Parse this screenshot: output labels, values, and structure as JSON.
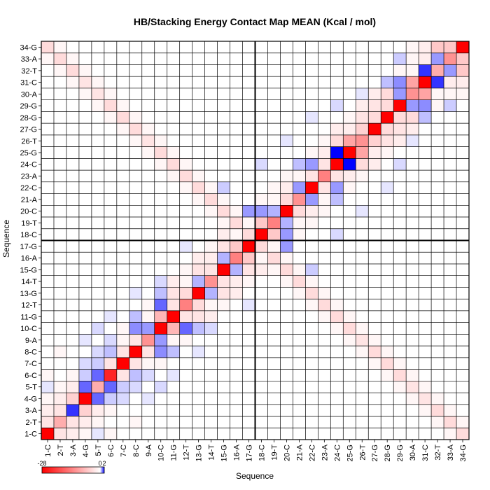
{
  "chart_data": {
    "type": "heatmap",
    "title": "HB/Stacking Energy Contact Map MEAN (Kcal / mol)",
    "xlabel": "Sequence",
    "ylabel": "Sequence",
    "x_labels": [
      "1-C",
      "2-T",
      "3-A",
      "4-G",
      "5-T",
      "6-C",
      "7-C",
      "8-C",
      "9-A",
      "10-C",
      "11-G",
      "12-T",
      "13-G",
      "14-T",
      "15-G",
      "16-A",
      "17-G",
      "18-C",
      "19-T",
      "20-C",
      "21-A",
      "22-C",
      "23-A",
      "24-C",
      "25-G",
      "26-T",
      "27-G",
      "28-G",
      "29-G",
      "30-A",
      "31-C",
      "32-T",
      "33-A",
      "34-G"
    ],
    "y_labels": [
      "1-C",
      "2-T",
      "3-A",
      "4-G",
      "5-T",
      "6-C",
      "7-C",
      "8-C",
      "9-A",
      "10-C",
      "11-G",
      "12-T",
      "13-G",
      "14-T",
      "15-G",
      "16-A",
      "17-G",
      "18-C",
      "19-T",
      "20-C",
      "21-A",
      "22-C",
      "23-A",
      "24-C",
      "25-G",
      "26-T",
      "27-G",
      "28-G",
      "29-G",
      "30-A",
      "31-C",
      "32-T",
      "33-A",
      "34-G"
    ],
    "strand_split_after": 17,
    "colorbar": {
      "min": -28,
      "max": 2,
      "tick_labels": [
        "-28",
        "0",
        "2"
      ],
      "tick_values": [
        -28,
        0,
        2
      ]
    },
    "colors": {
      "strong_negative": "#ff0000",
      "zero": "#ffffff",
      "positive": "#0000ff"
    },
    "cells": [
      [
        1,
        1,
        -28
      ],
      [
        2,
        2,
        -9
      ],
      [
        3,
        3,
        1.6
      ],
      [
        4,
        4,
        -28
      ],
      [
        5,
        5,
        -9
      ],
      [
        6,
        6,
        -24
      ],
      [
        7,
        7,
        -28
      ],
      [
        8,
        8,
        -28
      ],
      [
        9,
        9,
        -12
      ],
      [
        10,
        10,
        -28
      ],
      [
        11,
        11,
        -28
      ],
      [
        12,
        12,
        -14
      ],
      [
        13,
        13,
        -28
      ],
      [
        14,
        14,
        -12
      ],
      [
        15,
        15,
        -28
      ],
      [
        16,
        16,
        -14
      ],
      [
        17,
        17,
        -28
      ],
      [
        18,
        18,
        -28
      ],
      [
        19,
        19,
        -14
      ],
      [
        20,
        20,
        -28
      ],
      [
        21,
        21,
        -12
      ],
      [
        22,
        22,
        -28
      ],
      [
        23,
        23,
        -14
      ],
      [
        24,
        24,
        -28
      ],
      [
        25,
        25,
        -28
      ],
      [
        26,
        26,
        -12
      ],
      [
        27,
        27,
        -28
      ],
      [
        28,
        28,
        -28
      ],
      [
        29,
        29,
        -28
      ],
      [
        30,
        30,
        -12
      ],
      [
        31,
        31,
        -28
      ],
      [
        32,
        32,
        -9
      ],
      [
        33,
        33,
        -12
      ],
      [
        34,
        34,
        -28
      ],
      [
        1,
        2,
        -3
      ],
      [
        2,
        3,
        -3
      ],
      [
        3,
        4,
        -5
      ],
      [
        4,
        5,
        1.2
      ],
      [
        5,
        6,
        1.2
      ],
      [
        6,
        7,
        -3
      ],
      [
        7,
        8,
        -3
      ],
      [
        8,
        9,
        -3
      ],
      [
        9,
        10,
        0.8
      ],
      [
        10,
        11,
        -8
      ],
      [
        11,
        12,
        -3
      ],
      [
        12,
        13,
        -4
      ],
      [
        13,
        14,
        0.6
      ],
      [
        14,
        15,
        -3
      ],
      [
        15,
        16,
        0.6
      ],
      [
        16,
        17,
        -6
      ],
      [
        17,
        18,
        -6
      ],
      [
        18,
        19,
        -6
      ],
      [
        19,
        20,
        0.6
      ],
      [
        20,
        21,
        -4
      ],
      [
        21,
        22,
        0.8
      ],
      [
        22,
        23,
        -3
      ],
      [
        23,
        24,
        -3
      ],
      [
        24,
        25,
        2
      ],
      [
        25,
        26,
        -10
      ],
      [
        26,
        27,
        -5
      ],
      [
        27,
        28,
        -4
      ],
      [
        28,
        29,
        -4
      ],
      [
        29,
        30,
        0.8
      ],
      [
        30,
        31,
        -10
      ],
      [
        31,
        32,
        1.6
      ],
      [
        32,
        33,
        0.8
      ],
      [
        33,
        34,
        -6
      ],
      [
        1,
        3,
        -2
      ],
      [
        2,
        4,
        -2
      ],
      [
        3,
        5,
        -2
      ],
      [
        4,
        6,
        0.4
      ],
      [
        5,
        7,
        0.4
      ],
      [
        6,
        8,
        0.5
      ],
      [
        7,
        9,
        -1
      ],
      [
        8,
        10,
        0.9
      ],
      [
        9,
        11,
        -1
      ],
      [
        10,
        12,
        1.2
      ],
      [
        11,
        13,
        -3
      ],
      [
        12,
        14,
        -1
      ],
      [
        13,
        15,
        -3
      ],
      [
        14,
        16,
        -2
      ],
      [
        15,
        17,
        -3
      ],
      [
        16,
        18,
        -5
      ],
      [
        17,
        19,
        -1
      ],
      [
        18,
        20,
        0.8
      ],
      [
        19,
        21,
        -1
      ],
      [
        20,
        22,
        -2
      ],
      [
        21,
        23,
        -1
      ],
      [
        22,
        24,
        0.8
      ],
      [
        23,
        25,
        -2
      ],
      [
        24,
        26,
        -4
      ],
      [
        25,
        27,
        -2
      ],
      [
        26,
        28,
        -3
      ],
      [
        27,
        29,
        -3
      ],
      [
        28,
        30,
        -4
      ],
      [
        29,
        31,
        0.9
      ],
      [
        30,
        32,
        -1
      ],
      [
        31,
        33,
        -2
      ],
      [
        32,
        34,
        -6
      ],
      [
        1,
        4,
        -1
      ],
      [
        2,
        5,
        -1
      ],
      [
        3,
        6,
        -1
      ],
      [
        4,
        7,
        0.3
      ],
      [
        5,
        8,
        0.3
      ],
      [
        6,
        9,
        0.3
      ],
      [
        7,
        10,
        -1
      ],
      [
        8,
        11,
        0.5
      ],
      [
        9,
        12,
        -1
      ],
      [
        10,
        13,
        0.5
      ],
      [
        11,
        14,
        -2
      ],
      [
        12,
        15,
        -1
      ],
      [
        13,
        16,
        -2
      ],
      [
        14,
        17,
        -1
      ],
      [
        15,
        18,
        -2
      ],
      [
        16,
        19,
        -1
      ],
      [
        17,
        20,
        0.8
      ],
      [
        18,
        21,
        -1
      ],
      [
        19,
        22,
        -1
      ],
      [
        20,
        23,
        -1
      ],
      [
        21,
        24,
        0.5
      ],
      [
        22,
        25,
        -1
      ],
      [
        23,
        26,
        -1
      ],
      [
        24,
        27,
        -2
      ],
      [
        25,
        28,
        -1
      ],
      [
        26,
        29,
        -2
      ],
      [
        27,
        30,
        -2
      ],
      [
        28,
        31,
        -1
      ],
      [
        29,
        32,
        -1
      ],
      [
        30,
        33,
        -1
      ],
      [
        31,
        34,
        -2
      ],
      [
        1,
        34,
        -4
      ],
      [
        2,
        33,
        -4
      ],
      [
        3,
        32,
        -4
      ],
      [
        4,
        31,
        -3
      ],
      [
        5,
        30,
        -3
      ],
      [
        6,
        29,
        -4
      ],
      [
        7,
        28,
        -4
      ],
      [
        8,
        27,
        -4
      ],
      [
        9,
        26,
        -3
      ],
      [
        10,
        25,
        -4
      ],
      [
        11,
        24,
        -4
      ],
      [
        12,
        23,
        -4
      ],
      [
        13,
        22,
        -4
      ],
      [
        14,
        21,
        -4
      ],
      [
        15,
        20,
        -4
      ],
      [
        16,
        19,
        -4
      ],
      [
        17,
        18,
        -4
      ],
      [
        1,
        33,
        -1
      ],
      [
        2,
        32,
        -1
      ],
      [
        3,
        31,
        -1
      ],
      [
        4,
        30,
        -1
      ],
      [
        5,
        29,
        -1
      ],
      [
        6,
        28,
        -1
      ],
      [
        7,
        27,
        -1
      ],
      [
        8,
        26,
        -1
      ],
      [
        9,
        25,
        -1
      ],
      [
        10,
        24,
        -1
      ],
      [
        11,
        23,
        -1
      ],
      [
        12,
        22,
        -1
      ],
      [
        13,
        21,
        -1
      ],
      [
        14,
        20,
        -1
      ],
      [
        15,
        19,
        -1
      ],
      [
        16,
        18,
        -1
      ],
      [
        2,
        34,
        -1
      ],
      [
        3,
        33,
        -1
      ],
      [
        4,
        32,
        -1
      ],
      [
        5,
        31,
        -1
      ],
      [
        6,
        30,
        -1
      ],
      [
        7,
        29,
        -1
      ],
      [
        8,
        28,
        -1
      ],
      [
        9,
        27,
        -1
      ],
      [
        10,
        26,
        -1
      ],
      [
        11,
        25,
        -1
      ],
      [
        12,
        24,
        -1
      ],
      [
        13,
        23,
        -1
      ],
      [
        14,
        22,
        -1
      ],
      [
        15,
        21,
        -1
      ],
      [
        16,
        20,
        -1
      ],
      [
        17,
        19,
        -1
      ],
      [
        1,
        5,
        0.2
      ],
      [
        1,
        6,
        -1
      ],
      [
        2,
        8,
        -1
      ],
      [
        4,
        9,
        0.2
      ],
      [
        5,
        10,
        0.3
      ],
      [
        6,
        11,
        0.2
      ],
      [
        8,
        13,
        0.2
      ],
      [
        10,
        14,
        0.3
      ],
      [
        12,
        17,
        0.2
      ],
      [
        15,
        22,
        0.4
      ],
      [
        18,
        24,
        0.3
      ],
      [
        20,
        26,
        0.2
      ],
      [
        22,
        28,
        0.2
      ],
      [
        24,
        29,
        0.3
      ],
      [
        26,
        30,
        0.2
      ],
      [
        28,
        31,
        0.5
      ],
      [
        29,
        33,
        0.4
      ],
      [
        30,
        34,
        -1
      ]
    ]
  }
}
